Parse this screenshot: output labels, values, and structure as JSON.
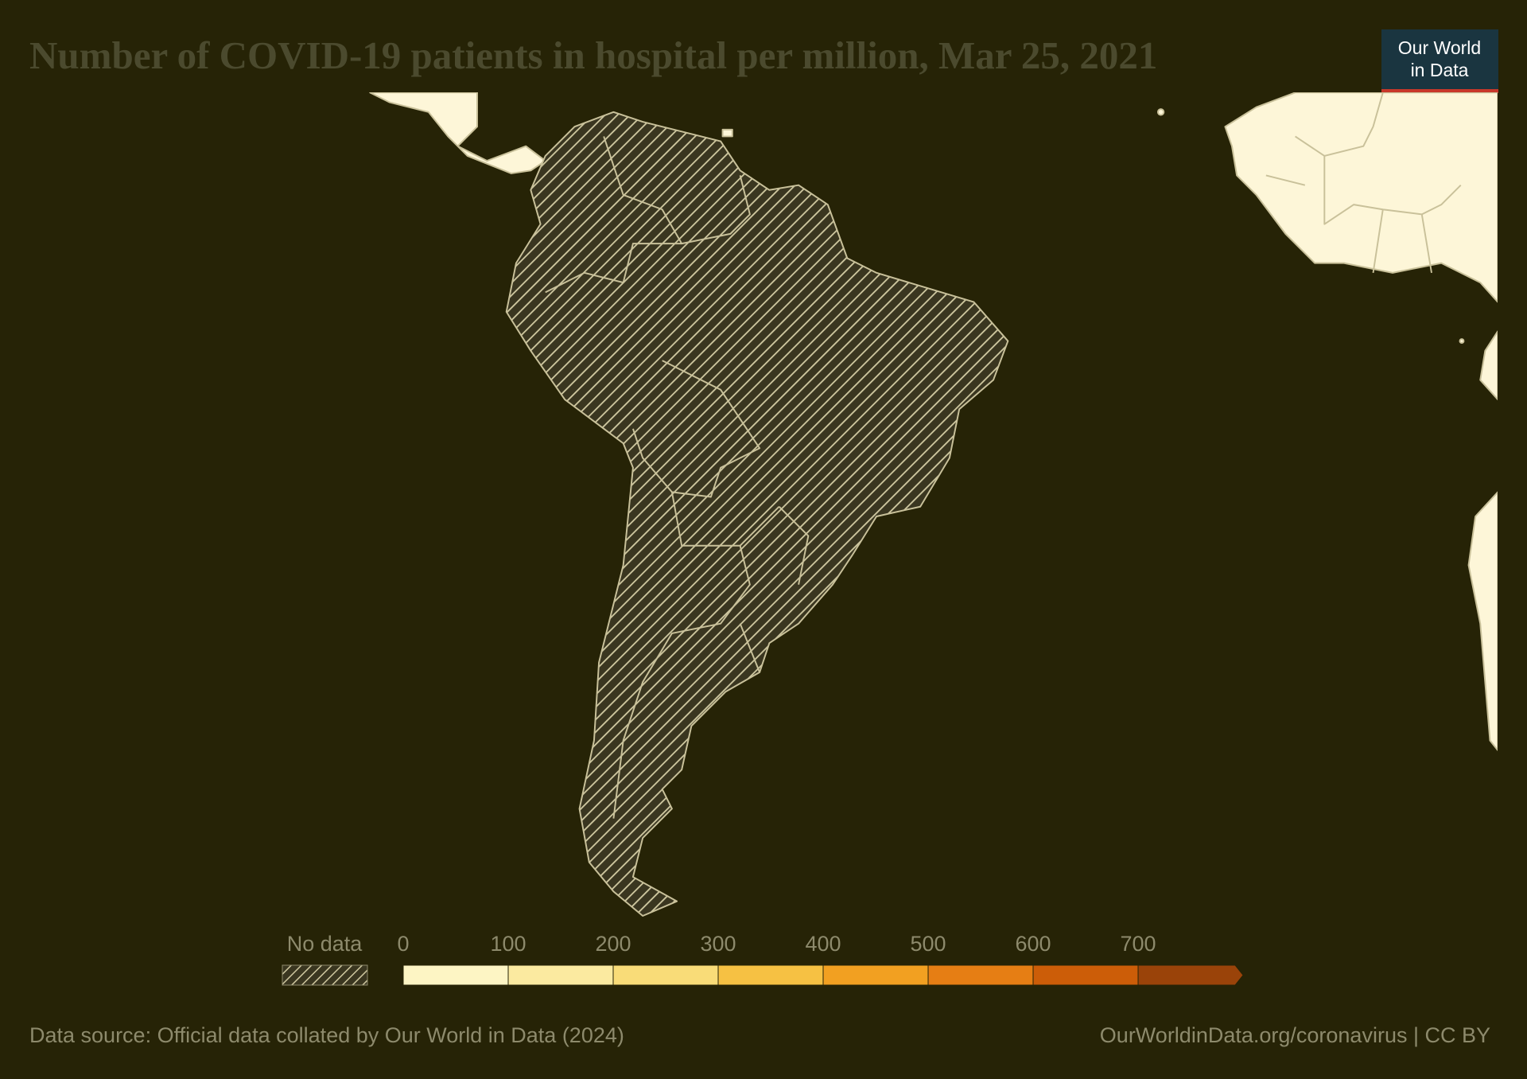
{
  "title": "Number of COVID-19 patients in hospital per million, Mar 25, 2021",
  "logo": [
    "Our World",
    "in Data"
  ],
  "legend": {
    "no_data": "No data",
    "bins": [
      0,
      100,
      200,
      300,
      400,
      500,
      600,
      700
    ],
    "colors": [
      "#fdf5c4",
      "#fbeaa0",
      "#f9dc78",
      "#f6c143",
      "#f2a021",
      "#e67e14",
      "#cc5d08",
      "#9a4309"
    ]
  },
  "source": "Data source: Official data collated by Our World in Data (2024)",
  "url": "OurWorldinData.org/coronavirus | CC BY"
}
